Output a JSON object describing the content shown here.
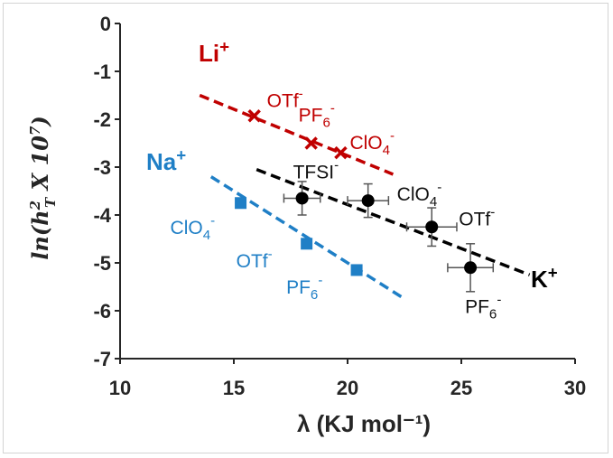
{
  "chart_data": {
    "type": "scatter",
    "xlabel": "λ (KJ mol⁻¹)",
    "ylabel": "ln(h_T^2 X 10^7)",
    "xlim": [
      10,
      30
    ],
    "ylim": [
      -7,
      0
    ],
    "xticks": [
      10,
      15,
      20,
      25,
      30
    ],
    "yticks": [
      0,
      -1,
      -2,
      -3,
      -4,
      -5,
      -6,
      -7
    ],
    "grid": false,
    "series": [
      {
        "name": "Li⁺",
        "color": "#c00000",
        "marker": "x",
        "points": [
          {
            "x": 15.9,
            "y": -1.93,
            "label": "OTf⁻"
          },
          {
            "x": 18.4,
            "y": -2.5,
            "label": "PF₆⁻"
          },
          {
            "x": 19.7,
            "y": -2.7,
            "label": "ClO₄⁻"
          }
        ],
        "fit": {
          "x": [
            13.5,
            22.0
          ],
          "y": [
            -1.5,
            -3.15
          ]
        }
      },
      {
        "name": "Na⁺",
        "color": "#1f7fc6",
        "marker": "square",
        "points": [
          {
            "x": 15.3,
            "y": -3.75,
            "label": "ClO₄⁻"
          },
          {
            "x": 18.2,
            "y": -4.6,
            "label": "OTf⁻"
          },
          {
            "x": 20.4,
            "y": -5.15,
            "label": "PF₆⁻"
          }
        ],
        "fit": {
          "x": [
            14.0,
            22.5
          ],
          "y": [
            -3.2,
            -5.75
          ]
        }
      },
      {
        "name": "K⁺",
        "color": "#000000",
        "marker": "circle",
        "points": [
          {
            "x": 18.0,
            "y": -3.65,
            "xerr": 0.8,
            "yerr": 0.35,
            "label": "TFSI⁻"
          },
          {
            "x": 20.9,
            "y": -3.7,
            "xerr": 0.9,
            "yerr": 0.35,
            "label": "ClO₄⁻"
          },
          {
            "x": 23.7,
            "y": -4.25,
            "xerr": 1.1,
            "yerr": 0.4,
            "label": "OTf⁻"
          },
          {
            "x": 25.4,
            "y": -5.1,
            "xerr": 1.0,
            "yerr": 0.5,
            "label": "PF₆⁻"
          }
        ],
        "fit": {
          "x": [
            16.0,
            28.0
          ],
          "y": [
            -3.05,
            -5.25
          ]
        }
      }
    ]
  }
}
